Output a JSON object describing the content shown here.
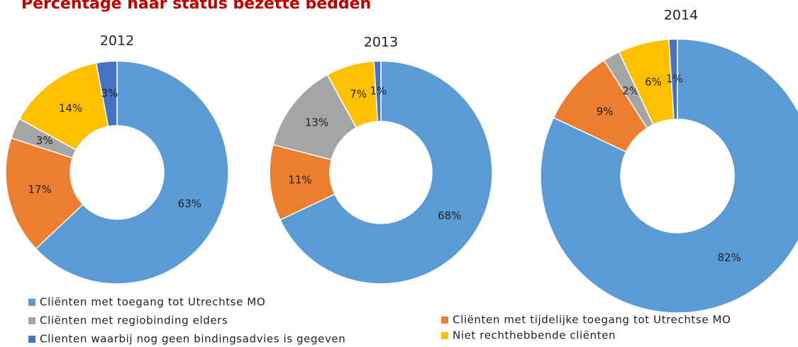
{
  "title": "Percentage naar status bezette bedden",
  "legend": {
    "entries": [
      {
        "name": "Cliënten met toegang tot Utrechtse MO",
        "color": "#5b9bd5"
      },
      {
        "name": "Cliënten met tijdelijke toegang tot Utrechtse MO",
        "color": "#ed7d31"
      },
      {
        "name": "Cliënten met regiobinding elders",
        "color": "#a5a5a5"
      },
      {
        "name": "Niet rechthebbende cliënten",
        "color": "#ffc000"
      },
      {
        "name": "Clienten waarbij nog geen bindingsadvies is gegeven",
        "color": "#4472c4"
      }
    ]
  },
  "chart_data": [
    {
      "type": "donut",
      "title": "2012",
      "values": [
        63,
        17,
        3,
        14,
        3
      ],
      "value_labels": [
        "63%",
        "17%",
        "3%",
        "14%",
        "3%"
      ]
    },
    {
      "type": "donut",
      "title": "2013",
      "values": [
        68,
        11,
        13,
        7,
        1
      ],
      "value_labels": [
        "68%",
        "11%",
        "13%",
        "7%",
        "1%"
      ]
    },
    {
      "type": "donut",
      "title": "2014",
      "values": [
        82,
        9,
        2,
        6,
        1
      ],
      "value_labels": [
        "82%",
        "9%",
        "2%",
        "6%",
        "1%"
      ]
    }
  ]
}
